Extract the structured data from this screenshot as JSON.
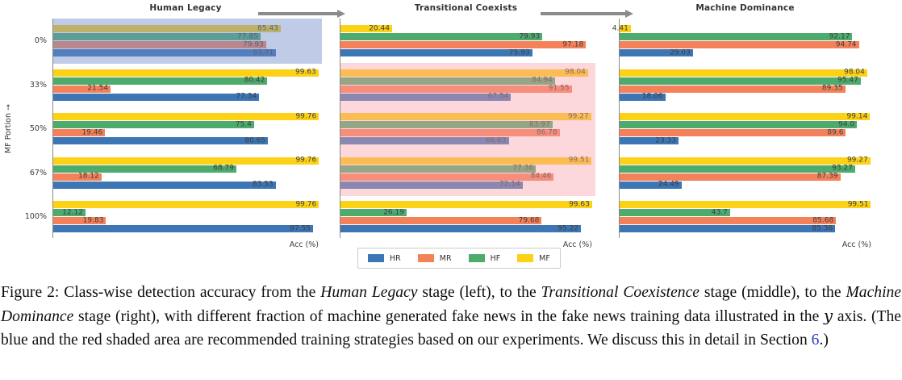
{
  "figure": {
    "ylabel": "MF Portion →",
    "xlabel": "Acc (%)",
    "legend": [
      "HR",
      "MR",
      "HF",
      "MF"
    ]
  },
  "colors": {
    "HR": "#3c76b5",
    "MR": "#f5815a",
    "HF": "#4cab6d",
    "MF": "#fcd116",
    "blue_shade": "rgba(113,140,202,0.45)",
    "red_shade": "rgba(248,160,170,0.42)",
    "axis": "#8a8a8a",
    "bar_label": "#3e3e3e",
    "arrow": "#8b8b8b",
    "link": "#2b3cc4"
  },
  "chart_data": [
    {
      "type": "bar",
      "orientation": "horizontal",
      "title": "Human Legacy",
      "xlabel": "Acc (%)",
      "ylabel": "MF Portion →",
      "xlim": [
        0,
        100
      ],
      "categories": [
        "0%",
        "33%",
        "50%",
        "67%",
        "100%"
      ],
      "series": [
        {
          "name": "HR",
          "values": [
            83.71,
            77.34,
            80.65,
            83.53,
            97.55
          ],
          "value_labels": [
            "83.71",
            "77.34",
            "80.65",
            "83.53",
            "97.55"
          ]
        },
        {
          "name": "MR",
          "values": [
            79.93,
            21.54,
            19.46,
            18.12,
            19.83
          ],
          "value_labels": [
            "79.93",
            "21.54",
            "19.46",
            "18.12",
            "19.83"
          ]
        },
        {
          "name": "HF",
          "values": [
            77.85,
            80.42,
            75.4,
            68.79,
            12.12
          ],
          "value_labels": [
            "77.85",
            "80.42",
            "75.4",
            "68.79",
            "12.12"
          ]
        },
        {
          "name": "MF",
          "values": [
            85.43,
            99.63,
            99.76,
            99.76,
            99.76
          ],
          "value_labels": [
            "85.43",
            "99.63",
            "99.76",
            "99.76",
            "99.76"
          ]
        }
      ],
      "highlight": {
        "from_group": 0,
        "to_group": 0,
        "fill": "blue_shade"
      }
    },
    {
      "type": "bar",
      "orientation": "horizontal",
      "title": "Transitional Coexists",
      "xlabel": "Acc (%)",
      "ylabel": "MF Portion →",
      "xlim": [
        0,
        100
      ],
      "categories": [
        "0%",
        "33%",
        "50%",
        "67%",
        "100%"
      ],
      "series": [
        {
          "name": "HR",
          "values": [
            75.93,
            67.54,
            66.63,
            72.14,
            95.22
          ],
          "value_labels": [
            "75.93",
            "67.54",
            "66.63",
            "72.14",
            "95.22"
          ]
        },
        {
          "name": "MR",
          "values": [
            97.18,
            91.55,
            86.78,
            84.46,
            79.68
          ],
          "value_labels": [
            "97.18",
            "91.55",
            "86.78",
            "84.46",
            "79.68"
          ]
        },
        {
          "name": "HF",
          "values": [
            79.93,
            84.94,
            83.97,
            77.36,
            26.19
          ],
          "value_labels": [
            "79.93",
            "84.94",
            "83.97",
            "77.36",
            "26.19"
          ]
        },
        {
          "name": "MF",
          "values": [
            20.44,
            98.04,
            99.27,
            99.51,
            99.63
          ],
          "value_labels": [
            "20.44",
            "98.04",
            "99.27",
            "99.51",
            "99.63"
          ]
        }
      ],
      "highlight": {
        "from_group": 1,
        "to_group": 3,
        "fill": "red_shade"
      }
    },
    {
      "type": "bar",
      "orientation": "horizontal",
      "title": "Machine Dominance",
      "xlabel": "Acc (%)",
      "ylabel": "MF Portion →",
      "xlim": [
        0,
        100
      ],
      "categories": [
        "0%",
        "33%",
        "50%",
        "67%",
        "100%"
      ],
      "series": [
        {
          "name": "HR",
          "values": [
            29.03,
            18.06,
            23.33,
            24.49,
            85.36
          ],
          "value_labels": [
            "29.03",
            "18.06",
            "23.33",
            "24.49",
            "85.36"
          ]
        },
        {
          "name": "MR",
          "values": [
            94.74,
            89.35,
            89.6,
            87.39,
            85.68
          ],
          "value_labels": [
            "94.74",
            "89.35",
            "89.6",
            "87.39",
            "85.68"
          ]
        },
        {
          "name": "HF",
          "values": [
            92.17,
            95.47,
            94.0,
            93.27,
            43.7
          ],
          "value_labels": [
            "92.17",
            "95.47",
            "94.0",
            "93.27",
            "43.7"
          ]
        },
        {
          "name": "MF",
          "values": [
            4.41,
            98.04,
            99.14,
            99.27,
            99.51
          ],
          "value_labels": [
            "4.41",
            "98.04",
            "99.14",
            "99.27",
            "99.51"
          ]
        }
      ],
      "highlight": null
    }
  ],
  "caption": {
    "segments": [
      {
        "text": "Figure 2: Class-wise detection accuracy from the ",
        "style": "normal"
      },
      {
        "text": "Human Legacy",
        "style": "italic"
      },
      {
        "text": " stage (left), to the ",
        "style": "normal"
      },
      {
        "text": "Transitional Coexistence",
        "style": "italic"
      },
      {
        "text": " stage (middle), to the ",
        "style": "normal"
      },
      {
        "text": "Machine Dominance",
        "style": "italic"
      },
      {
        "text": " stage (right), with different fraction of machine generated fake news in the fake news training data illustrated in the ",
        "style": "normal"
      },
      {
        "text": "y",
        "style": "math"
      },
      {
        "text": " axis. (The blue and the red shaded area are recommended training strategies based on our experiments. We discuss this in detail in Section ",
        "style": "normal"
      },
      {
        "text": "6",
        "style": "link"
      },
      {
        "text": ".)",
        "style": "normal"
      }
    ]
  }
}
